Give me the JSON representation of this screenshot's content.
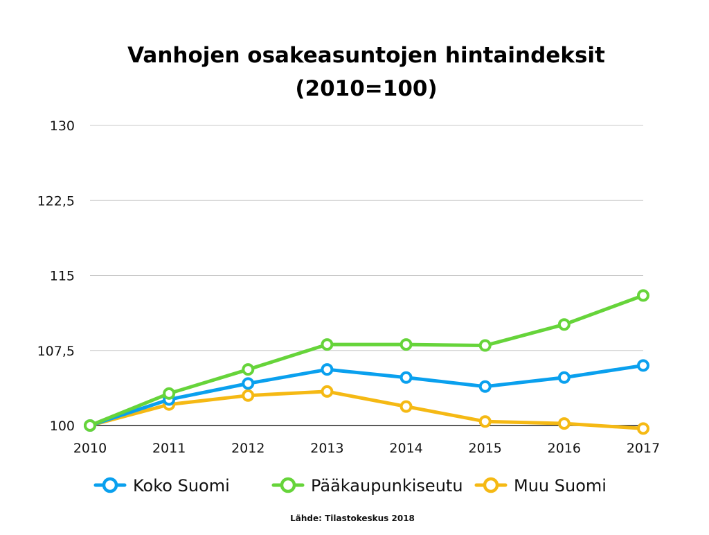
{
  "chart_data": {
    "type": "line",
    "title_line1": "Vanhojen osakeasuntojen hintaindeksit",
    "title_line2": "(2010=100)",
    "x": [
      "2010",
      "2011",
      "2012",
      "2013",
      "2014",
      "2015",
      "2016",
      "2017"
    ],
    "yticks": [
      "100",
      "107,5",
      "115",
      "122,5",
      "130"
    ],
    "ylim": [
      100,
      130
    ],
    "grid": true,
    "legend_position": "bottom",
    "series": [
      {
        "name": "Koko Suomi",
        "color": "#0aa0ee",
        "values": [
          100,
          102.6,
          104.2,
          105.6,
          104.8,
          103.9,
          104.8,
          106.0
        ]
      },
      {
        "name": "Pääkaupunkiseutu",
        "color": "#66d43a",
        "values": [
          100,
          103.2,
          105.6,
          108.1,
          108.1,
          108.0,
          110.1,
          113.0
        ]
      },
      {
        "name": "Muu Suomi",
        "color": "#f5b914",
        "values": [
          100,
          102.1,
          103.0,
          103.4,
          101.9,
          100.4,
          100.2,
          99.7
        ]
      }
    ],
    "source": "Lähde: Tilastokeskus 2018"
  }
}
